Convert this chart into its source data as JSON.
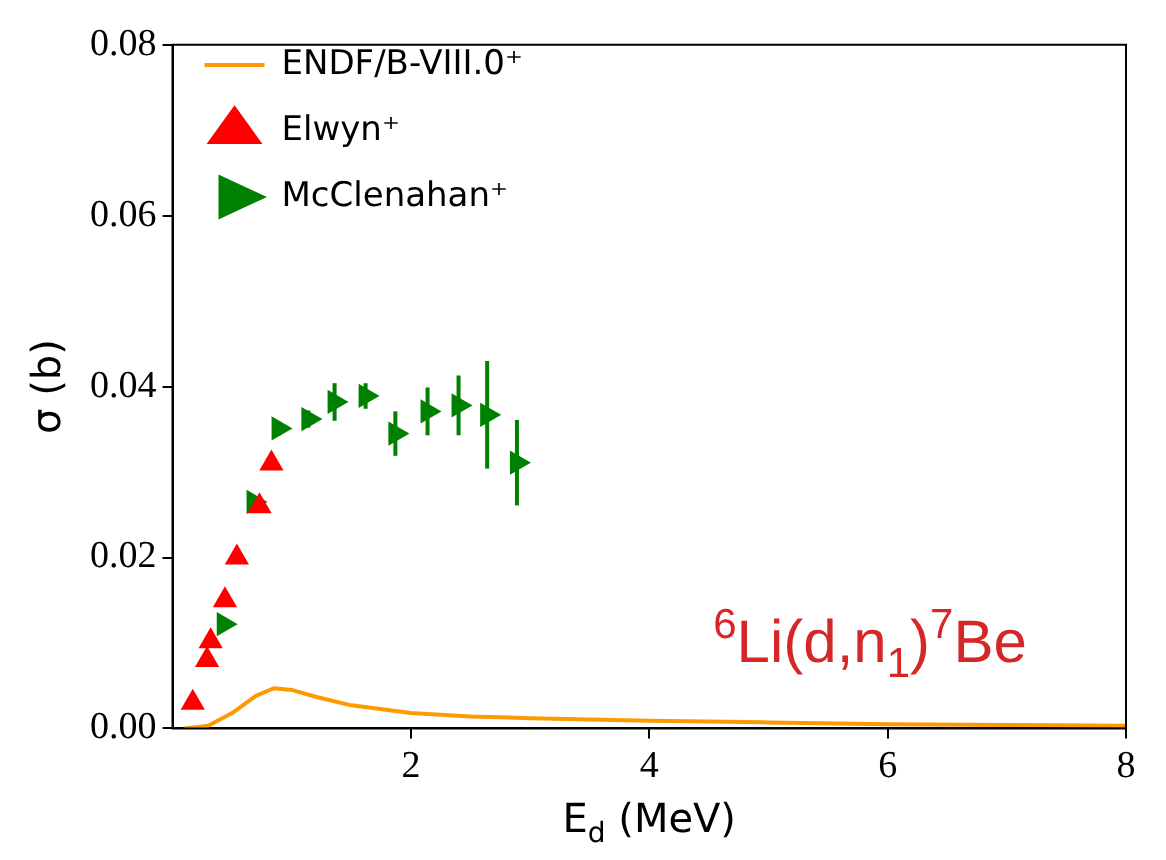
{
  "chart_data": {
    "type": "scatter",
    "xlabel": "E$_{d}$ (MeV)",
    "ylabel": "σ (b)",
    "xlim": [
      0,
      8
    ],
    "xticks": [
      2,
      4,
      6,
      8
    ],
    "ylim": [
      0,
      0.08
    ],
    "yticks": [
      {
        "value": 0,
        "label": "0.00"
      },
      {
        "value": 0.02,
        "label": "0.02"
      },
      {
        "value": 0.04,
        "label": "0.04"
      },
      {
        "value": 0.06,
        "label": "0.06"
      },
      {
        "value": 0.08,
        "label": "0.08"
      }
    ],
    "grid": false,
    "legend": "top left",
    "marker": "triangle",
    "annotations": [
      "$^{6}$Li(d,n$_{1}$)$^{7}$Be"
    ],
    "series": [
      {
        "name": "ENDF/B-VIII.0⁺",
        "type": "line",
        "color": "#ff9900",
        "marker": "none",
        "x": [
          0.1,
          0.3,
          0.5,
          0.7,
          0.85,
          1,
          1.2,
          1.5,
          2,
          2.5,
          3,
          4,
          5,
          6,
          7,
          8
        ],
        "values": [
          0,
          0.0003,
          0.0018,
          0.0038,
          0.0047,
          0.0045,
          0.0037,
          0.0027,
          0.0018,
          0.0014,
          0.0012,
          0.0009,
          0.0007,
          0.0005,
          0.0004,
          0.0003
        ]
      },
      {
        "name": "Elwyn⁺",
        "color": "#ff0000",
        "x": [
          0.17,
          0.29,
          0.32,
          0.44,
          0.54,
          0.73,
          0.83
        ],
        "values": [
          0.003,
          0.008,
          0.0102,
          0.015,
          0.02,
          0.026,
          0.031
        ],
        "errors": [
          0.0005,
          0.0005,
          0.0005,
          0.0005,
          0.0005,
          0.0005,
          0.0005
        ]
      },
      {
        "name": "McClenahan⁺",
        "color": "#008000",
        "x": [
          0.43,
          0.68,
          0.89,
          1.14,
          1.36,
          1.62,
          1.87,
          2.14,
          2.4,
          2.64,
          2.89
        ],
        "values": [
          0.0122,
          0.0265,
          0.0351,
          0.0362,
          0.0382,
          0.0389,
          0.0345,
          0.0371,
          0.0378,
          0.0367,
          0.0311
        ],
        "errors": [
          0.0008,
          0.0008,
          0.0008,
          0.001,
          0.0022,
          0.0015,
          0.0026,
          0.0028,
          0.0035,
          0.0063,
          0.005
        ]
      }
    ]
  }
}
